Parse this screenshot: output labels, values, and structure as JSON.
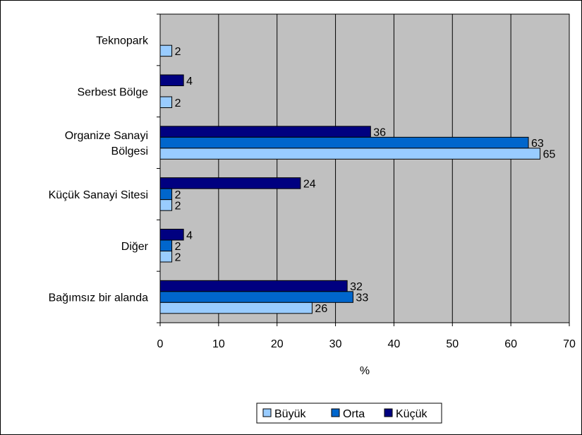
{
  "chart_data": {
    "type": "bar",
    "orientation": "horizontal",
    "categories": [
      "Teknopark",
      "Serbest Bölge",
      "Organize Sanayi Bölgesi",
      "Küçük Sanayi Sitesi",
      "Diğer",
      "Bağımsız bir alanda"
    ],
    "series": [
      {
        "name": "Küçük",
        "values": [
          null,
          4,
          36,
          24,
          4,
          32
        ]
      },
      {
        "name": "Orta",
        "values": [
          null,
          null,
          63,
          2,
          2,
          33
        ]
      },
      {
        "name": "Büyük",
        "values": [
          2,
          2,
          65,
          2,
          2,
          26
        ]
      }
    ],
    "xlabel": "%",
    "ylabel": "",
    "xlim": [
      0,
      70
    ],
    "xticks": [
      0,
      10,
      20,
      30,
      40,
      50,
      60,
      70
    ],
    "grid": true,
    "plot_background": "#c0c0c0",
    "legend_position": "bottom",
    "legend_order": [
      "Büyük",
      "Orta",
      "Küçük"
    ],
    "colors": {
      "Küçük": "#000080",
      "Orta": "#0066cc",
      "Büyük": "#99ccff"
    }
  }
}
